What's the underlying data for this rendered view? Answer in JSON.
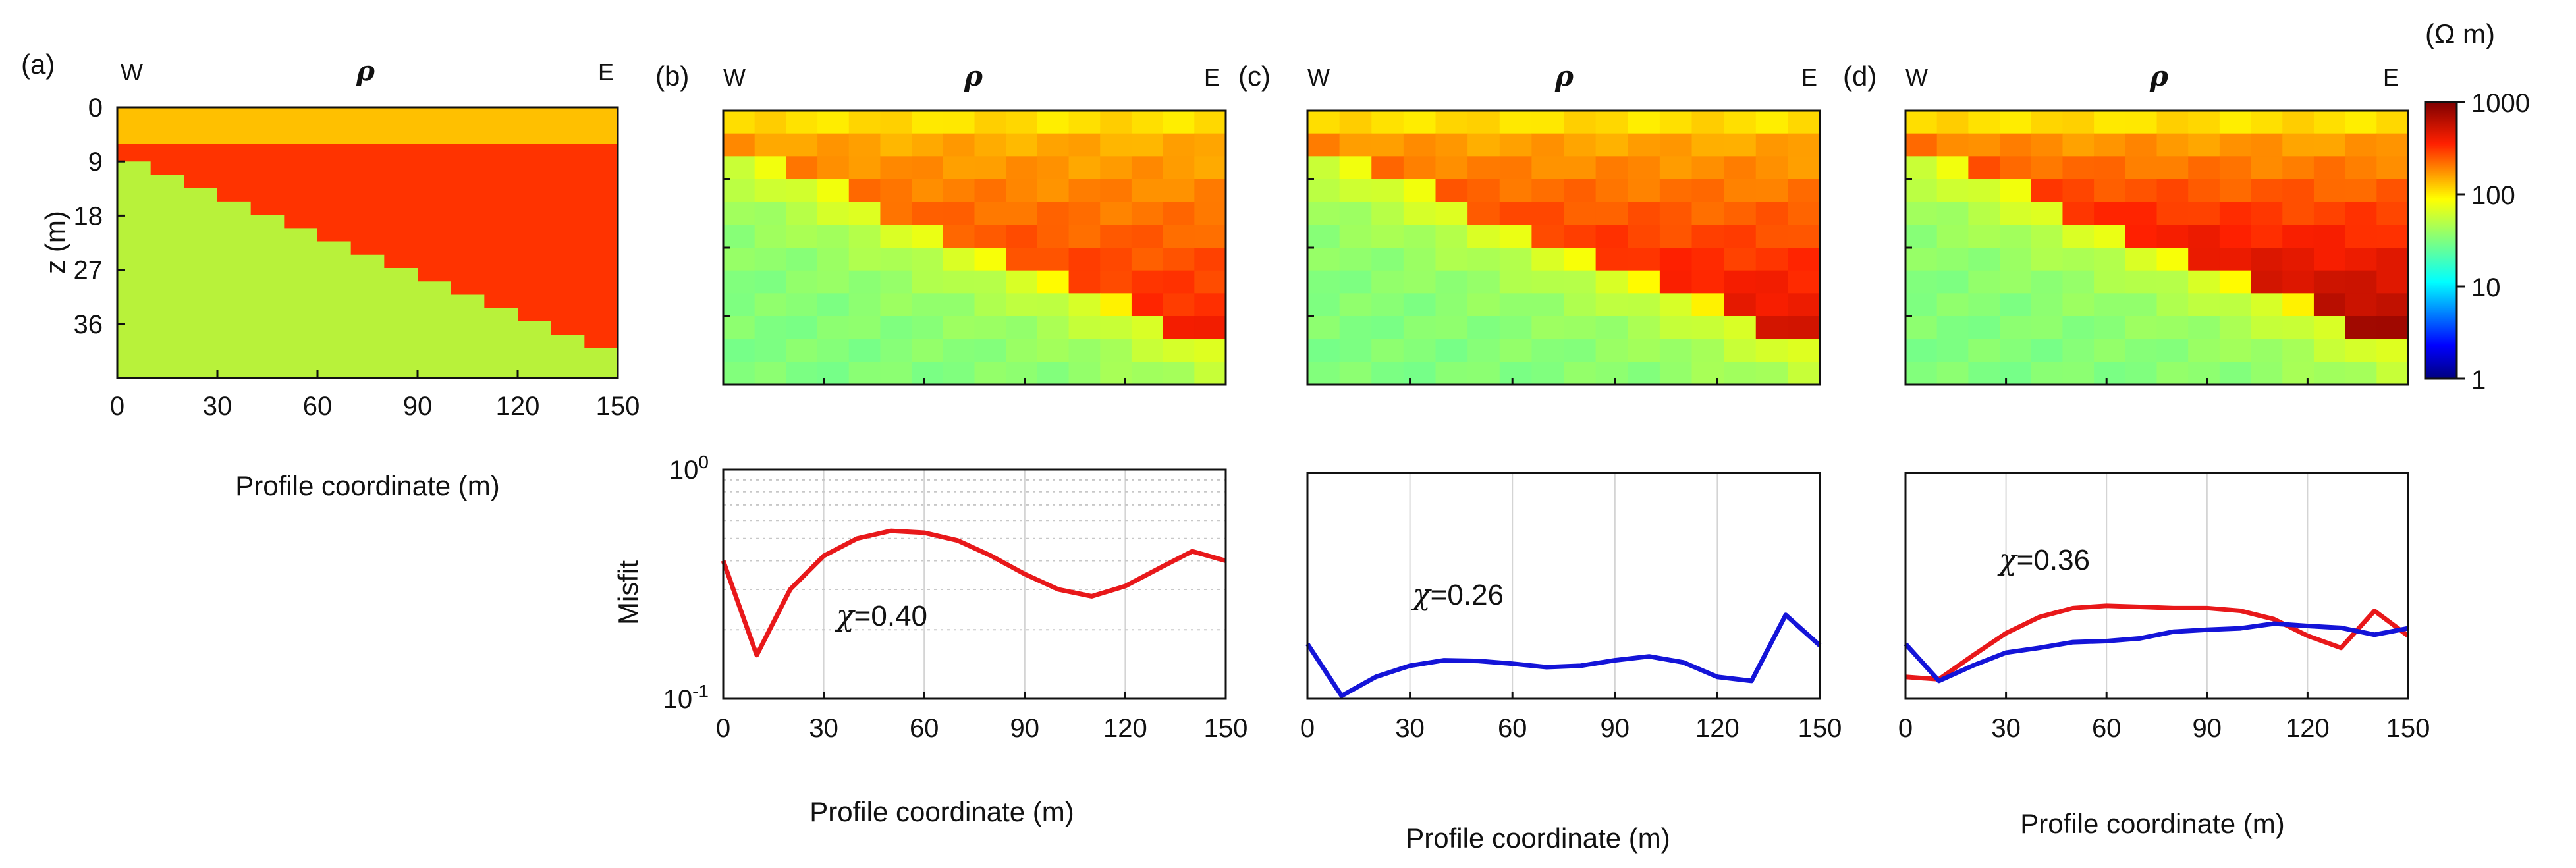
{
  "chart_data": [
    {
      "id": "a",
      "type": "heatmap",
      "panel_label": "(a)",
      "title": "ρ",
      "west_label": "W",
      "east_label": "E",
      "ylabel": "z (m)",
      "xlabel": "Profile coordinate (m)",
      "x_ticks": [
        "0",
        "30",
        "60",
        "90",
        "120",
        "150"
      ],
      "y_ticks": [
        "0",
        "9",
        "18",
        "27",
        "36"
      ],
      "xlim": [
        0,
        150
      ],
      "ylim": [
        0,
        45
      ],
      "layers": [
        {
          "name": "top layer",
          "color": "#FFC000",
          "z_from": 0,
          "z_to": 6
        },
        {
          "name": "resistive layer",
          "color": "#FF3300"
        },
        {
          "name": "basement",
          "color": "#B8F23A"
        }
      ],
      "interface_start_depth": 9,
      "interface_end_depth": 40
    },
    {
      "id": "b",
      "type": "heatmap",
      "panel_label": "(b)",
      "title": "ρ",
      "west_label": "W",
      "east_label": "E",
      "xlim": [
        0,
        150
      ]
    },
    {
      "id": "c",
      "type": "heatmap",
      "panel_label": "(c)",
      "title": "ρ",
      "west_label": "W",
      "east_label": "E",
      "xlim": [
        0,
        150
      ]
    },
    {
      "id": "d",
      "type": "heatmap",
      "panel_label": "(d)",
      "title": "ρ",
      "west_label": "W",
      "east_label": "E",
      "xlim": [
        0,
        150
      ]
    },
    {
      "id": "colorbar",
      "type": "colorbar",
      "unit_label": "(Ω m)",
      "scale": "log",
      "ticks": [
        "1000",
        "100",
        "10",
        "1"
      ],
      "range": [
        1,
        1000
      ]
    },
    {
      "id": "misfit-b",
      "type": "line",
      "ylabel": "Misfit",
      "xlabel": "Profile coordinate (m)",
      "x_ticks": [
        "0",
        "30",
        "60",
        "90",
        "120",
        "150"
      ],
      "y_tick_base": "10",
      "y_tick_exps": [
        "0",
        "-1"
      ],
      "yscale": "log",
      "ylim": [
        0.1,
        1
      ],
      "xlim": [
        0,
        150
      ],
      "annotation_prefix": "χ",
      "annotation_value": "=0.40",
      "series": [
        {
          "name": "misfit",
          "color": "#e8181a",
          "x": [
            0,
            10,
            20,
            30,
            40,
            50,
            60,
            70,
            80,
            90,
            100,
            110,
            120,
            130,
            140,
            150
          ],
          "y": [
            0.4,
            0.155,
            0.3,
            0.42,
            0.5,
            0.54,
            0.53,
            0.49,
            0.42,
            0.35,
            0.3,
            0.28,
            0.31,
            0.37,
            0.44,
            0.4
          ]
        }
      ]
    },
    {
      "id": "misfit-c",
      "type": "line",
      "xlabel": "Profile coordinate (m)",
      "x_ticks": [
        "0",
        "30",
        "60",
        "90",
        "120",
        "150"
      ],
      "yscale": "log",
      "ylim": [
        0.1,
        1
      ],
      "xlim": [
        0,
        150
      ],
      "annotation_prefix": "χ",
      "annotation_value": "=0.26",
      "series": [
        {
          "name": "misfit",
          "color": "#1414d8",
          "x": [
            0,
            10,
            20,
            30,
            40,
            50,
            60,
            70,
            80,
            90,
            100,
            110,
            120,
            130,
            140,
            150
          ],
          "y": [
            0.175,
            0.103,
            0.125,
            0.14,
            0.148,
            0.147,
            0.143,
            0.138,
            0.14,
            0.148,
            0.154,
            0.145,
            0.125,
            0.12,
            0.235,
            0.172
          ]
        }
      ]
    },
    {
      "id": "misfit-d",
      "type": "line",
      "xlabel": "Profile coordinate (m)",
      "x_ticks": [
        "0",
        "30",
        "60",
        "90",
        "120",
        "150"
      ],
      "yscale": "log",
      "ylim": [
        0.1,
        1
      ],
      "xlim": [
        0,
        150
      ],
      "annotation_prefix": "χ",
      "annotation_value": "=0.36",
      "series": [
        {
          "name": "misfit red",
          "color": "#e8181a",
          "x": [
            0,
            10,
            20,
            30,
            40,
            50,
            60,
            70,
            80,
            90,
            100,
            110,
            120,
            130,
            140,
            150
          ],
          "y": [
            0.125,
            0.122,
            0.155,
            0.195,
            0.23,
            0.252,
            0.258,
            0.255,
            0.252,
            0.252,
            0.245,
            0.225,
            0.19,
            0.168,
            0.245,
            0.19
          ]
        },
        {
          "name": "misfit blue",
          "color": "#1414d8",
          "x": [
            0,
            10,
            20,
            30,
            40,
            50,
            60,
            70,
            80,
            90,
            100,
            110,
            120,
            130,
            140,
            150
          ],
          "y": [
            0.175,
            0.12,
            0.14,
            0.16,
            0.168,
            0.178,
            0.18,
            0.185,
            0.198,
            0.202,
            0.205,
            0.215,
            0.21,
            0.206,
            0.192,
            0.205
          ]
        }
      ]
    }
  ]
}
